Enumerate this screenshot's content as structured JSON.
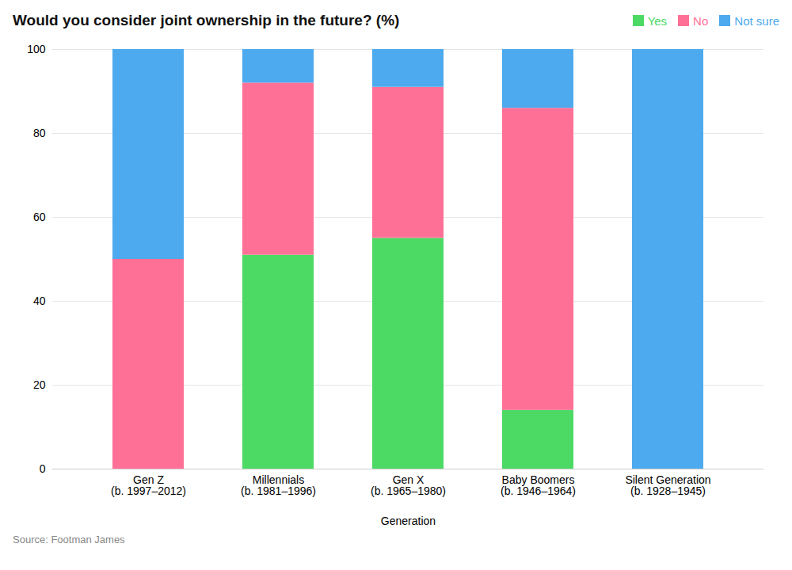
{
  "chart_data": {
    "type": "bar",
    "stacked": true,
    "title": "Would you consider joint ownership in the future? (%)",
    "xlabel": "Generation",
    "source": "Source: Footman James",
    "categories": [
      "Gen Z\n(b. 1997–2012)",
      "Millennials\n(b. 1981–1996)",
      "Gen X\n(b. 1965–1980)",
      "Baby Boomers\n(b. 1946–1964)",
      "Silent Generation\n(b. 1928–1945)"
    ],
    "series": [
      {
        "name": "Yes",
        "color": "#4CD964",
        "values": [
          0,
          51,
          55,
          14,
          0
        ]
      },
      {
        "name": "No",
        "color": "#FF7096",
        "values": [
          50,
          41,
          36,
          72,
          0
        ]
      },
      {
        "name": "Not sure",
        "color": "#4DAAEE",
        "values": [
          50,
          8,
          9,
          14,
          100
        ]
      }
    ],
    "ylim": [
      0,
      100
    ],
    "yticks": [
      0,
      20,
      40,
      60,
      80,
      100
    ],
    "grid": true,
    "legend": "upper right"
  }
}
